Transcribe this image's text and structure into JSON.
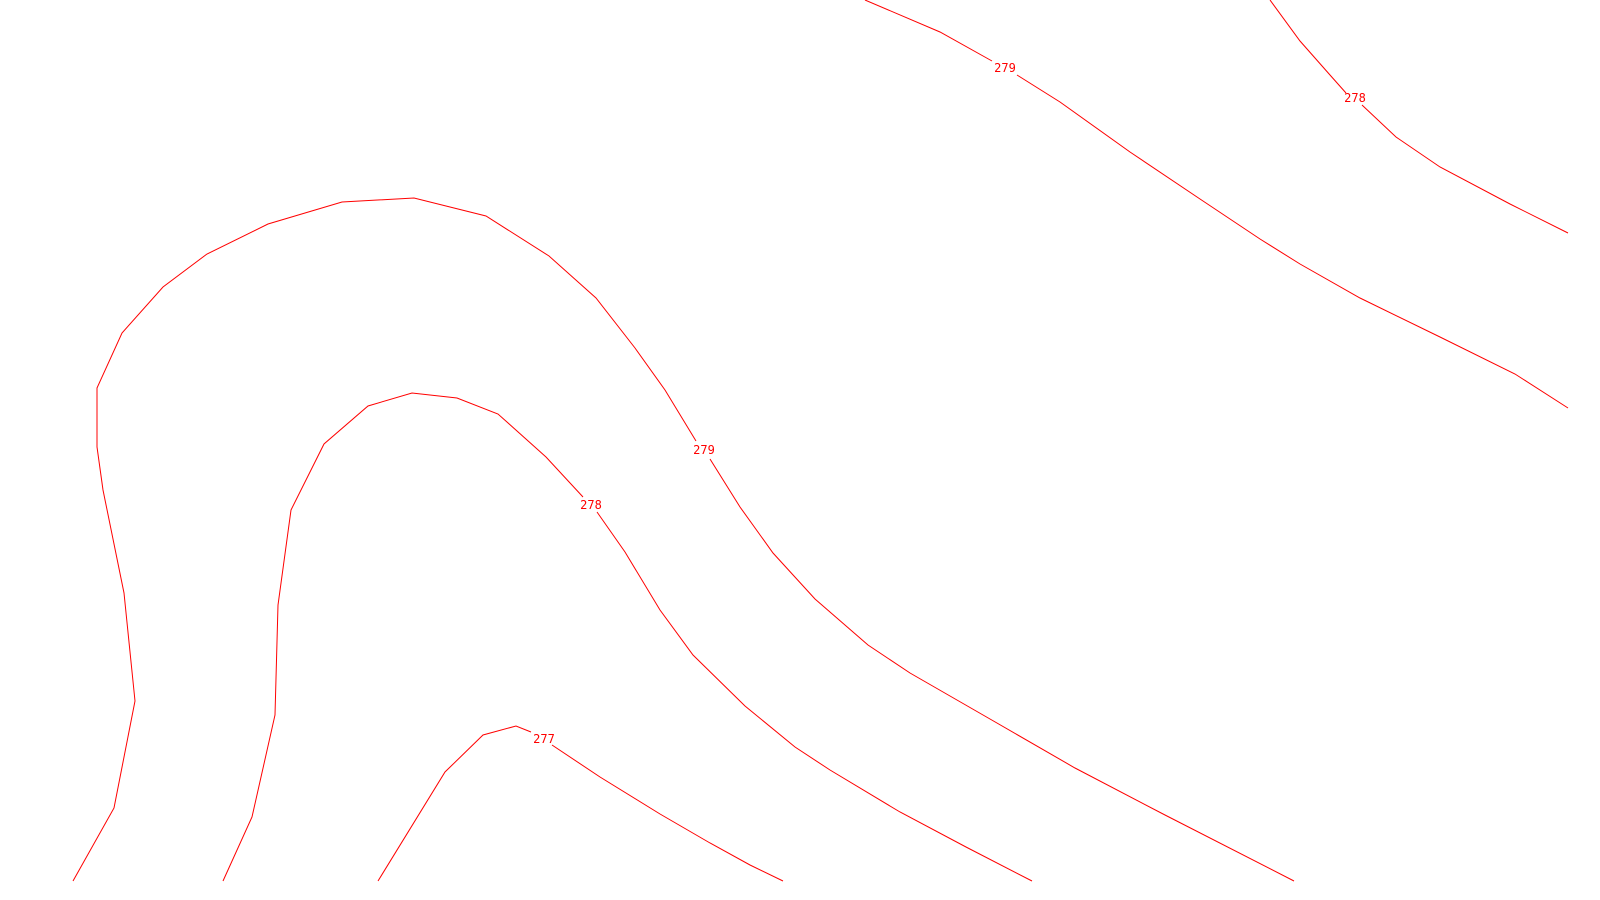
{
  "map": {
    "background": "#ffffff",
    "line_color": "#ff0000",
    "contours": [
      {
        "id": "c279-upper",
        "elevation": "279",
        "label": "279"
      },
      {
        "id": "c278-upper",
        "elevation": "278",
        "label": "278"
      },
      {
        "id": "c279-lower",
        "elevation": "279",
        "label": "279"
      },
      {
        "id": "c278-lower",
        "elevation": "278",
        "label": "278"
      },
      {
        "id": "c277",
        "elevation": "277",
        "label": "277"
      }
    ]
  }
}
